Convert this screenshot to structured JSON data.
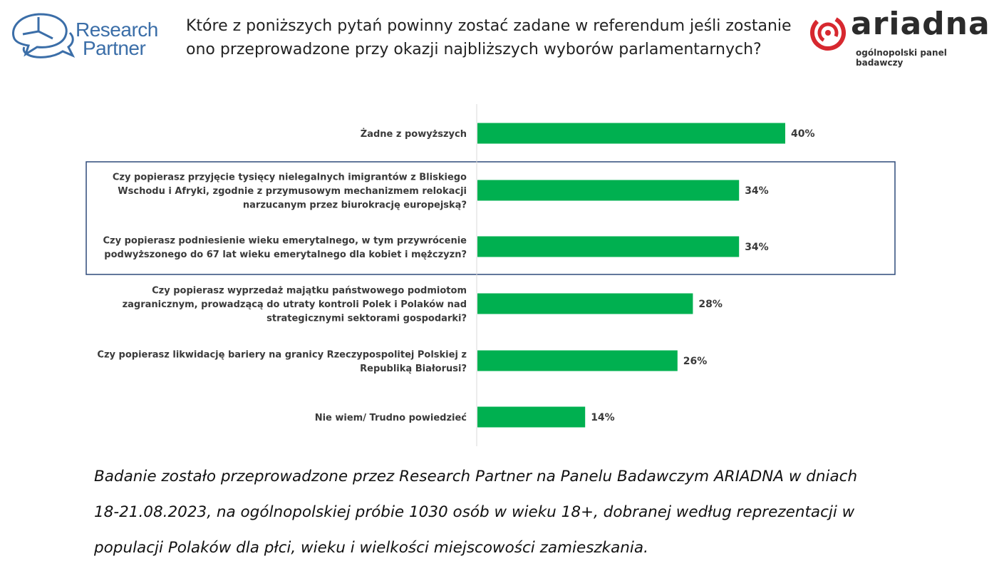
{
  "header": {
    "logo_left": {
      "line1": "Research",
      "line2": "Partner",
      "icon": "speech-bubbles-pie-icon",
      "color": "#3b6ea8"
    },
    "title": "Które z poniższych pytań powinny zostać zadane w referendum jeśli zostanie ono przeprowadzone przy okazji najbliższych wyborów parlamentarnych?",
    "logo_right": {
      "word": "ariadna",
      "tagline": "ogólnopolski panel badawczy",
      "icon": "spiral-icon",
      "color": "#d7282f"
    }
  },
  "chart_data": {
    "type": "bar",
    "orientation": "horizontal",
    "bar_color": "#00b050",
    "categories": [
      [
        "Żadne z powyższych"
      ],
      [
        "Czy popierasz przyjęcie tysięcy nielegalnych imigrantów z Bliskiego",
        "Wschodu i Afryki, zgodnie z przymusowym mechanizmem relokacji",
        "narzucanym przez biurokrację europejską?"
      ],
      [
        "Czy popierasz podniesienie wieku emerytalnego, w tym przywrócenie",
        "podwyższonego do 67 lat wieku emerytalnego dla kobiet i mężczyzn?"
      ],
      [
        "Czy popierasz wyprzedaż majątku państwowego podmiotom",
        "zagranicznym, prowadzącą do utraty kontroli Polek i Polaków nad",
        "strategicznymi sektorami gospodarki?"
      ],
      [
        "Czy popierasz likwidację bariery na granicy Rzeczypospolitej Polskiej z",
        "Republiką Białorusi?"
      ],
      [
        "Nie wiem/ Trudno powiedzieć"
      ]
    ],
    "values": [
      40,
      34,
      34,
      28,
      26,
      14
    ],
    "value_labels": [
      "40%",
      "34%",
      "34%",
      "28%",
      "26%",
      "14%"
    ],
    "xlim": [
      0,
      50
    ],
    "highlighted_categories": [
      1,
      2
    ],
    "highlight_color": "#2e4a7a"
  },
  "footnote": {
    "lines": [
      "Badanie zostało przeprowadzone przez Research Partner na Panelu Badawczym ARIADNA w dniach",
      "18-21.08.2023, na ogólnopolskiej próbie 1030 osób w wieku 18+, dobranej według reprezentacji w",
      "populacji Polaków dla płci, wieku i wielkości miejscowości zamieszkania."
    ]
  }
}
